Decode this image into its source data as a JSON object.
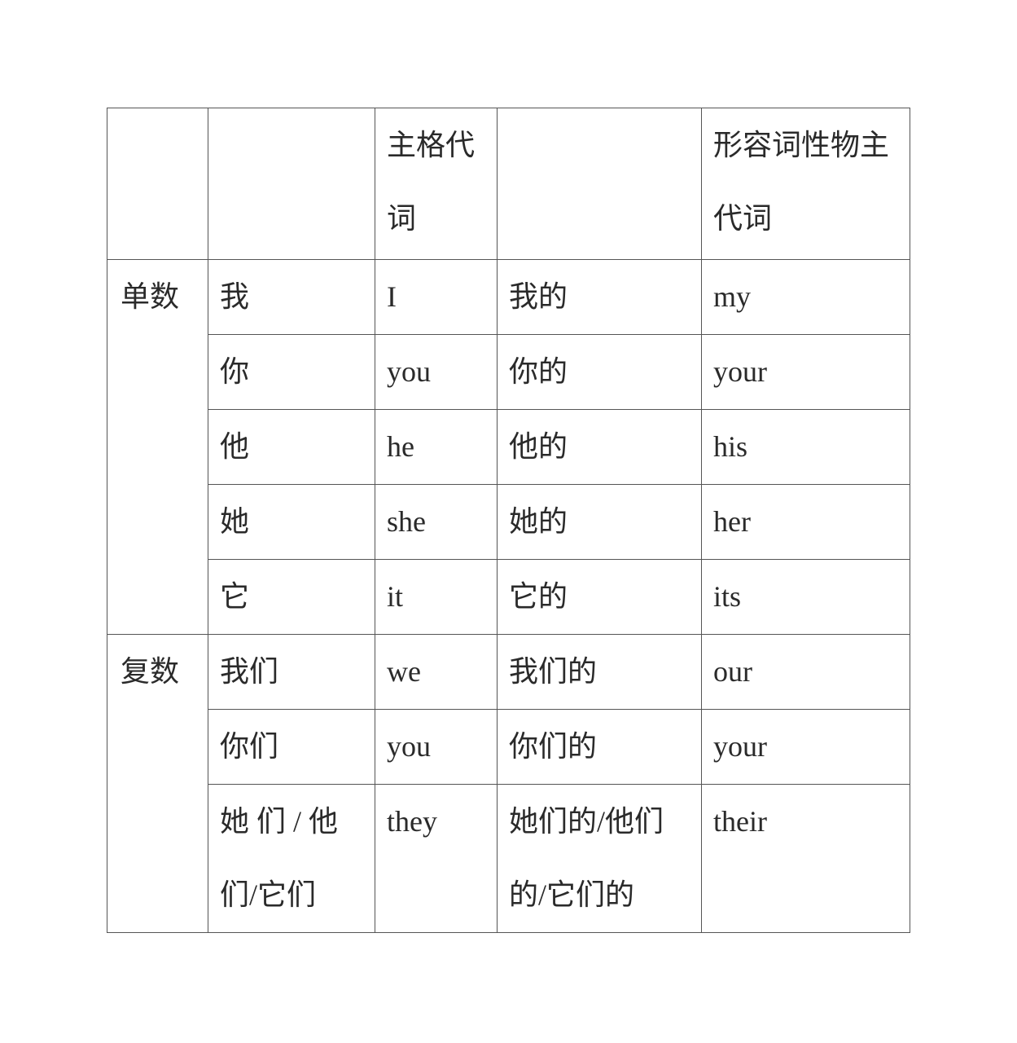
{
  "header": [
    "",
    "",
    "主格代词",
    "",
    "形容词性物主代词"
  ],
  "groups": [
    {
      "label": "单数",
      "rows": [
        [
          "我",
          "I",
          "我的",
          "my"
        ],
        [
          "你",
          "you",
          "你的",
          "your"
        ],
        [
          "他",
          "he",
          "他的",
          "his"
        ],
        [
          "她",
          "she",
          "她的",
          "her"
        ],
        [
          "它",
          "it",
          "它的",
          "its"
        ]
      ]
    },
    {
      "label": "复数",
      "rows": [
        [
          "我们",
          "we",
          "我们的",
          "our"
        ],
        [
          "你们",
          "you",
          "你们的",
          "your"
        ],
        [
          "她 们 / 他们/它们",
          "they",
          "她们的/他们的/它们的",
          "their"
        ]
      ]
    }
  ]
}
